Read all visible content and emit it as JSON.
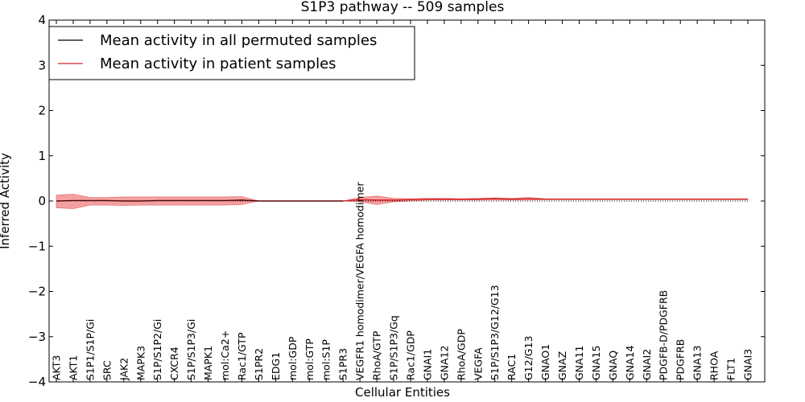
{
  "chart_data": {
    "type": "line",
    "title": "S1P3 pathway -- 509 samples",
    "xlabel": "Cellular Entities",
    "ylabel": "Inferred Activity",
    "ylim": [
      -4,
      4
    ],
    "yticks": [
      -4,
      -3,
      -2,
      -1,
      0,
      1,
      2,
      3,
      4
    ],
    "ytick_labels": [
      "−4",
      "−3",
      "−2",
      "−1",
      "0",
      "1",
      "2",
      "3",
      "4"
    ],
    "grid": false,
    "legend_position": "top-left",
    "categories": [
      "AKT3",
      "AKT1",
      "S1P1/S1P/Gi",
      "SRC",
      "JAK2",
      "MAPK3",
      "S1P/S1P2/Gi",
      "CXCR4",
      "S1P/S1P3/Gi",
      "MAPK1",
      "mol:Ca2+",
      "Rac1/GTP",
      "S1PR2",
      "EDG1",
      "mol:GDP",
      "mol:GTP",
      "mol:S1P",
      "S1PR3",
      "VEGFR1 homodimer/VEGFA homodimer",
      "RhoA/GTP",
      "S1P/S1P3/Gq",
      "Rac1/GDP",
      "GNAI1",
      "GNA12",
      "RhoA/GDP",
      "VEGFA",
      "S1P/S1P3/G12/G13",
      "RAC1",
      "G12/G13",
      "GNAO1",
      "GNAZ",
      "GNA11",
      "GNA15",
      "GNAQ",
      "GNA14",
      "GNAI2",
      "PDGFB-D/PDGFRB",
      "PDGFRB",
      "GNA13",
      "RHOA",
      "FLT1",
      "GNAI3"
    ],
    "series": [
      {
        "name": "Mean activity in all permuted samples",
        "color": "#000000",
        "style": "dotted",
        "values": [
          0,
          0,
          0,
          0,
          0,
          0,
          0,
          0,
          0,
          0,
          0,
          0,
          0,
          0,
          0,
          0,
          0,
          0,
          0,
          0,
          0,
          0,
          0,
          0,
          0,
          0,
          0,
          0,
          0,
          0,
          0,
          0,
          0,
          0,
          0,
          0,
          0,
          0,
          0,
          0,
          0,
          0
        ]
      },
      {
        "name": "Mean activity in patient samples",
        "color": "#d62728",
        "style": "solid",
        "values": [
          0.0,
          0.01,
          0.01,
          0.01,
          0.0,
          0.0,
          0.01,
          0.01,
          0.01,
          0.01,
          0.01,
          0.02,
          0.0,
          0.0,
          0.0,
          0.0,
          0.0,
          0.0,
          0.03,
          0.02,
          0.02,
          0.03,
          0.04,
          0.04,
          0.04,
          0.04,
          0.05,
          0.04,
          0.05,
          0.04,
          0.04,
          0.04,
          0.04,
          0.04,
          0.04,
          0.04,
          0.04,
          0.04,
          0.04,
          0.04,
          0.04,
          0.04
        ],
        "band_upper": [
          0.13,
          0.15,
          0.08,
          0.08,
          0.09,
          0.09,
          0.09,
          0.09,
          0.09,
          0.09,
          0.09,
          0.1,
          0.0,
          0.0,
          0.0,
          0.0,
          0.0,
          0.0,
          0.08,
          0.11,
          0.06,
          0.05,
          0.06,
          0.06,
          0.05,
          0.06,
          0.07,
          0.06,
          0.08,
          0.05,
          0.05,
          0.05,
          0.05,
          0.05,
          0.05,
          0.05,
          0.05,
          0.05,
          0.05,
          0.05,
          0.05,
          0.05
        ],
        "band_lower": [
          -0.15,
          -0.17,
          -0.09,
          -0.09,
          -0.1,
          -0.09,
          -0.09,
          -0.09,
          -0.09,
          -0.09,
          -0.09,
          -0.08,
          0.0,
          0.0,
          0.0,
          0.0,
          0.0,
          0.0,
          -0.02,
          -0.08,
          -0.02,
          0.0,
          0.02,
          0.02,
          0.02,
          0.02,
          0.02,
          0.02,
          0.02,
          0.03,
          0.03,
          0.03,
          0.03,
          0.03,
          0.03,
          0.03,
          0.03,
          0.03,
          0.03,
          0.03,
          0.03,
          0.03
        ]
      }
    ]
  }
}
